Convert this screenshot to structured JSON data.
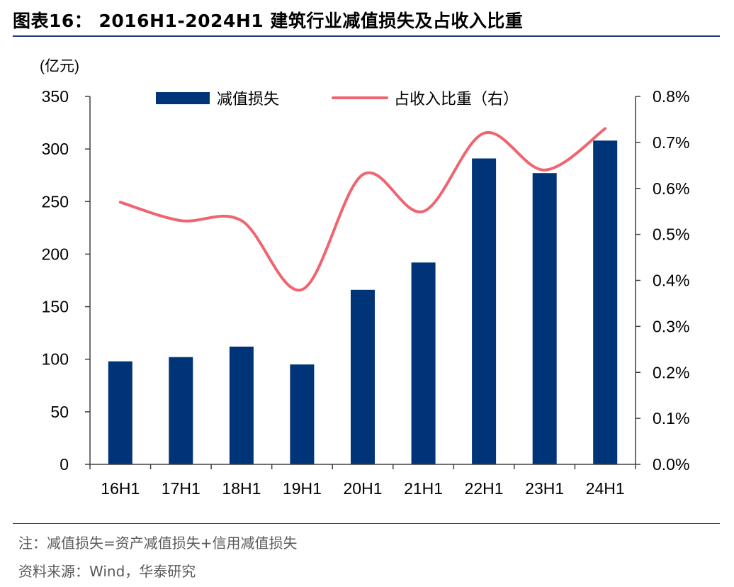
{
  "figure": {
    "title": "图表16： 2016H1-2024H1 建筑行业减值损失及占收入比重",
    "note": "注：减值损失=资产减值损失+信用减值损失",
    "source": "资料来源：Wind，华泰研究"
  },
  "chart_data": {
    "type": "bar",
    "categories": [
      "16H1",
      "17H1",
      "18H1",
      "19H1",
      "20H1",
      "21H1",
      "22H1",
      "23H1",
      "24H1"
    ],
    "series": [
      {
        "name": "减值损失",
        "type": "bar",
        "axis": "left",
        "values": [
          98,
          102,
          112,
          95,
          166,
          192,
          291,
          277,
          308
        ]
      },
      {
        "name": "占收入比重（右）",
        "type": "line",
        "axis": "right",
        "unit": "%",
        "values": [
          0.57,
          0.53,
          0.53,
          0.38,
          0.63,
          0.55,
          0.72,
          0.64,
          0.73
        ]
      }
    ],
    "y_left": {
      "unit_label": "(亿元)",
      "min": 0,
      "max": 350,
      "step": 50,
      "ticks": [
        "0",
        "50",
        "100",
        "150",
        "200",
        "250",
        "300",
        "350"
      ]
    },
    "y_right": {
      "min": 0,
      "max": 0.8,
      "step": 0.1,
      "ticks": [
        "0.0%",
        "0.1%",
        "0.2%",
        "0.3%",
        "0.4%",
        "0.5%",
        "0.6%",
        "0.7%",
        "0.8%"
      ]
    },
    "legend_position": "top",
    "grid": false,
    "colors": {
      "bar": "#003478",
      "line": "#f06470"
    }
  }
}
